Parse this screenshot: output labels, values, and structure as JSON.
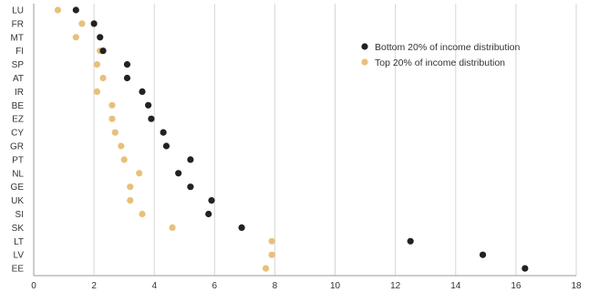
{
  "chart_data": {
    "type": "scatter",
    "orientation": "horizontal-dot",
    "categories": [
      "LU",
      "FR",
      "MT",
      "FI",
      "SP",
      "AT",
      "IR",
      "BE",
      "EZ",
      "CY",
      "GR",
      "PT",
      "NL",
      "GE",
      "UK",
      "SI",
      "SK",
      "LT",
      "LV",
      "EE"
    ],
    "series": [
      {
        "name": "Bottom 20% of income distribution",
        "color": "#222222",
        "values": [
          1.4,
          2.0,
          2.2,
          2.3,
          3.1,
          3.1,
          3.6,
          3.8,
          3.9,
          4.3,
          4.4,
          5.2,
          4.8,
          5.2,
          5.9,
          5.8,
          6.9,
          12.5,
          14.9,
          16.3
        ]
      },
      {
        "name": "Top 20% of income distribution",
        "color": "#E8C07A",
        "values": [
          0.8,
          1.6,
          1.4,
          2.2,
          2.1,
          2.3,
          2.1,
          2.6,
          2.6,
          2.7,
          2.9,
          3.0,
          3.5,
          3.2,
          3.2,
          3.6,
          4.6,
          7.9,
          7.9,
          7.7
        ]
      }
    ],
    "xlim": [
      0,
      18
    ],
    "xticks": [
      0,
      2,
      4,
      6,
      8,
      10,
      12,
      14,
      16,
      18
    ],
    "grid": "vertical",
    "legend_position": "top-right"
  }
}
